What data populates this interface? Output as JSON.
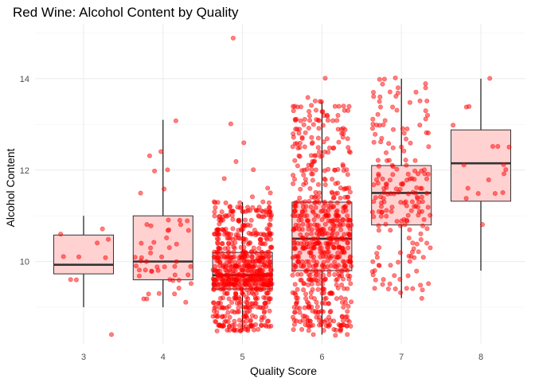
{
  "chart_data": {
    "type": "box",
    "title": "Red Wine: Alcohol Content by Quality",
    "xlabel": "Quality Score",
    "ylabel": "Alcohol Content",
    "categories": [
      "3",
      "4",
      "5",
      "6",
      "7",
      "8"
    ],
    "ylim": [
      8.2,
      15.2
    ],
    "yticks": [
      "10",
      "12",
      "14"
    ],
    "grid": true,
    "legend": "none",
    "colors": {
      "box_fill": "#ffd1d1",
      "box_stroke": "#333333",
      "median": "#333333",
      "whisker": "#000000",
      "points": "#ff0000",
      "grid_major": "#ebebeb",
      "grid_minor": "#f4f4f4"
    },
    "boxes": [
      {
        "quality": "3",
        "min": 9.0,
        "q1": 9.73,
        "median": 9.93,
        "q3": 10.58,
        "max": 11.0,
        "outliers": [
          8.4
        ]
      },
      {
        "quality": "4",
        "min": 9.0,
        "q1": 9.6,
        "median": 10.0,
        "q3": 11.0,
        "max": 13.1,
        "outliers": []
      },
      {
        "quality": "5",
        "min": 8.5,
        "q1": 9.4,
        "median": 9.7,
        "q3": 10.2,
        "max": 11.3,
        "outliers": [
          11.4,
          11.5,
          11.6,
          11.8,
          12.0,
          12.2,
          12.6,
          13.0,
          14.9
        ]
      },
      {
        "quality": "6",
        "min": 8.4,
        "q1": 9.8,
        "median": 10.5,
        "q3": 11.3,
        "max": 13.5,
        "outliers": [
          13.6,
          14.0
        ]
      },
      {
        "quality": "7",
        "min": 9.2,
        "q1": 10.8,
        "median": 11.5,
        "q3": 12.1,
        "max": 14.0,
        "outliers": []
      },
      {
        "quality": "8",
        "min": 9.8,
        "q1": 11.32,
        "median": 12.15,
        "q3": 12.88,
        "max": 14.0,
        "outliers": []
      }
    ],
    "points_count": {
      "3": 10,
      "4": 53,
      "5": 681,
      "6": 638,
      "7": 199,
      "8": 18
    }
  }
}
